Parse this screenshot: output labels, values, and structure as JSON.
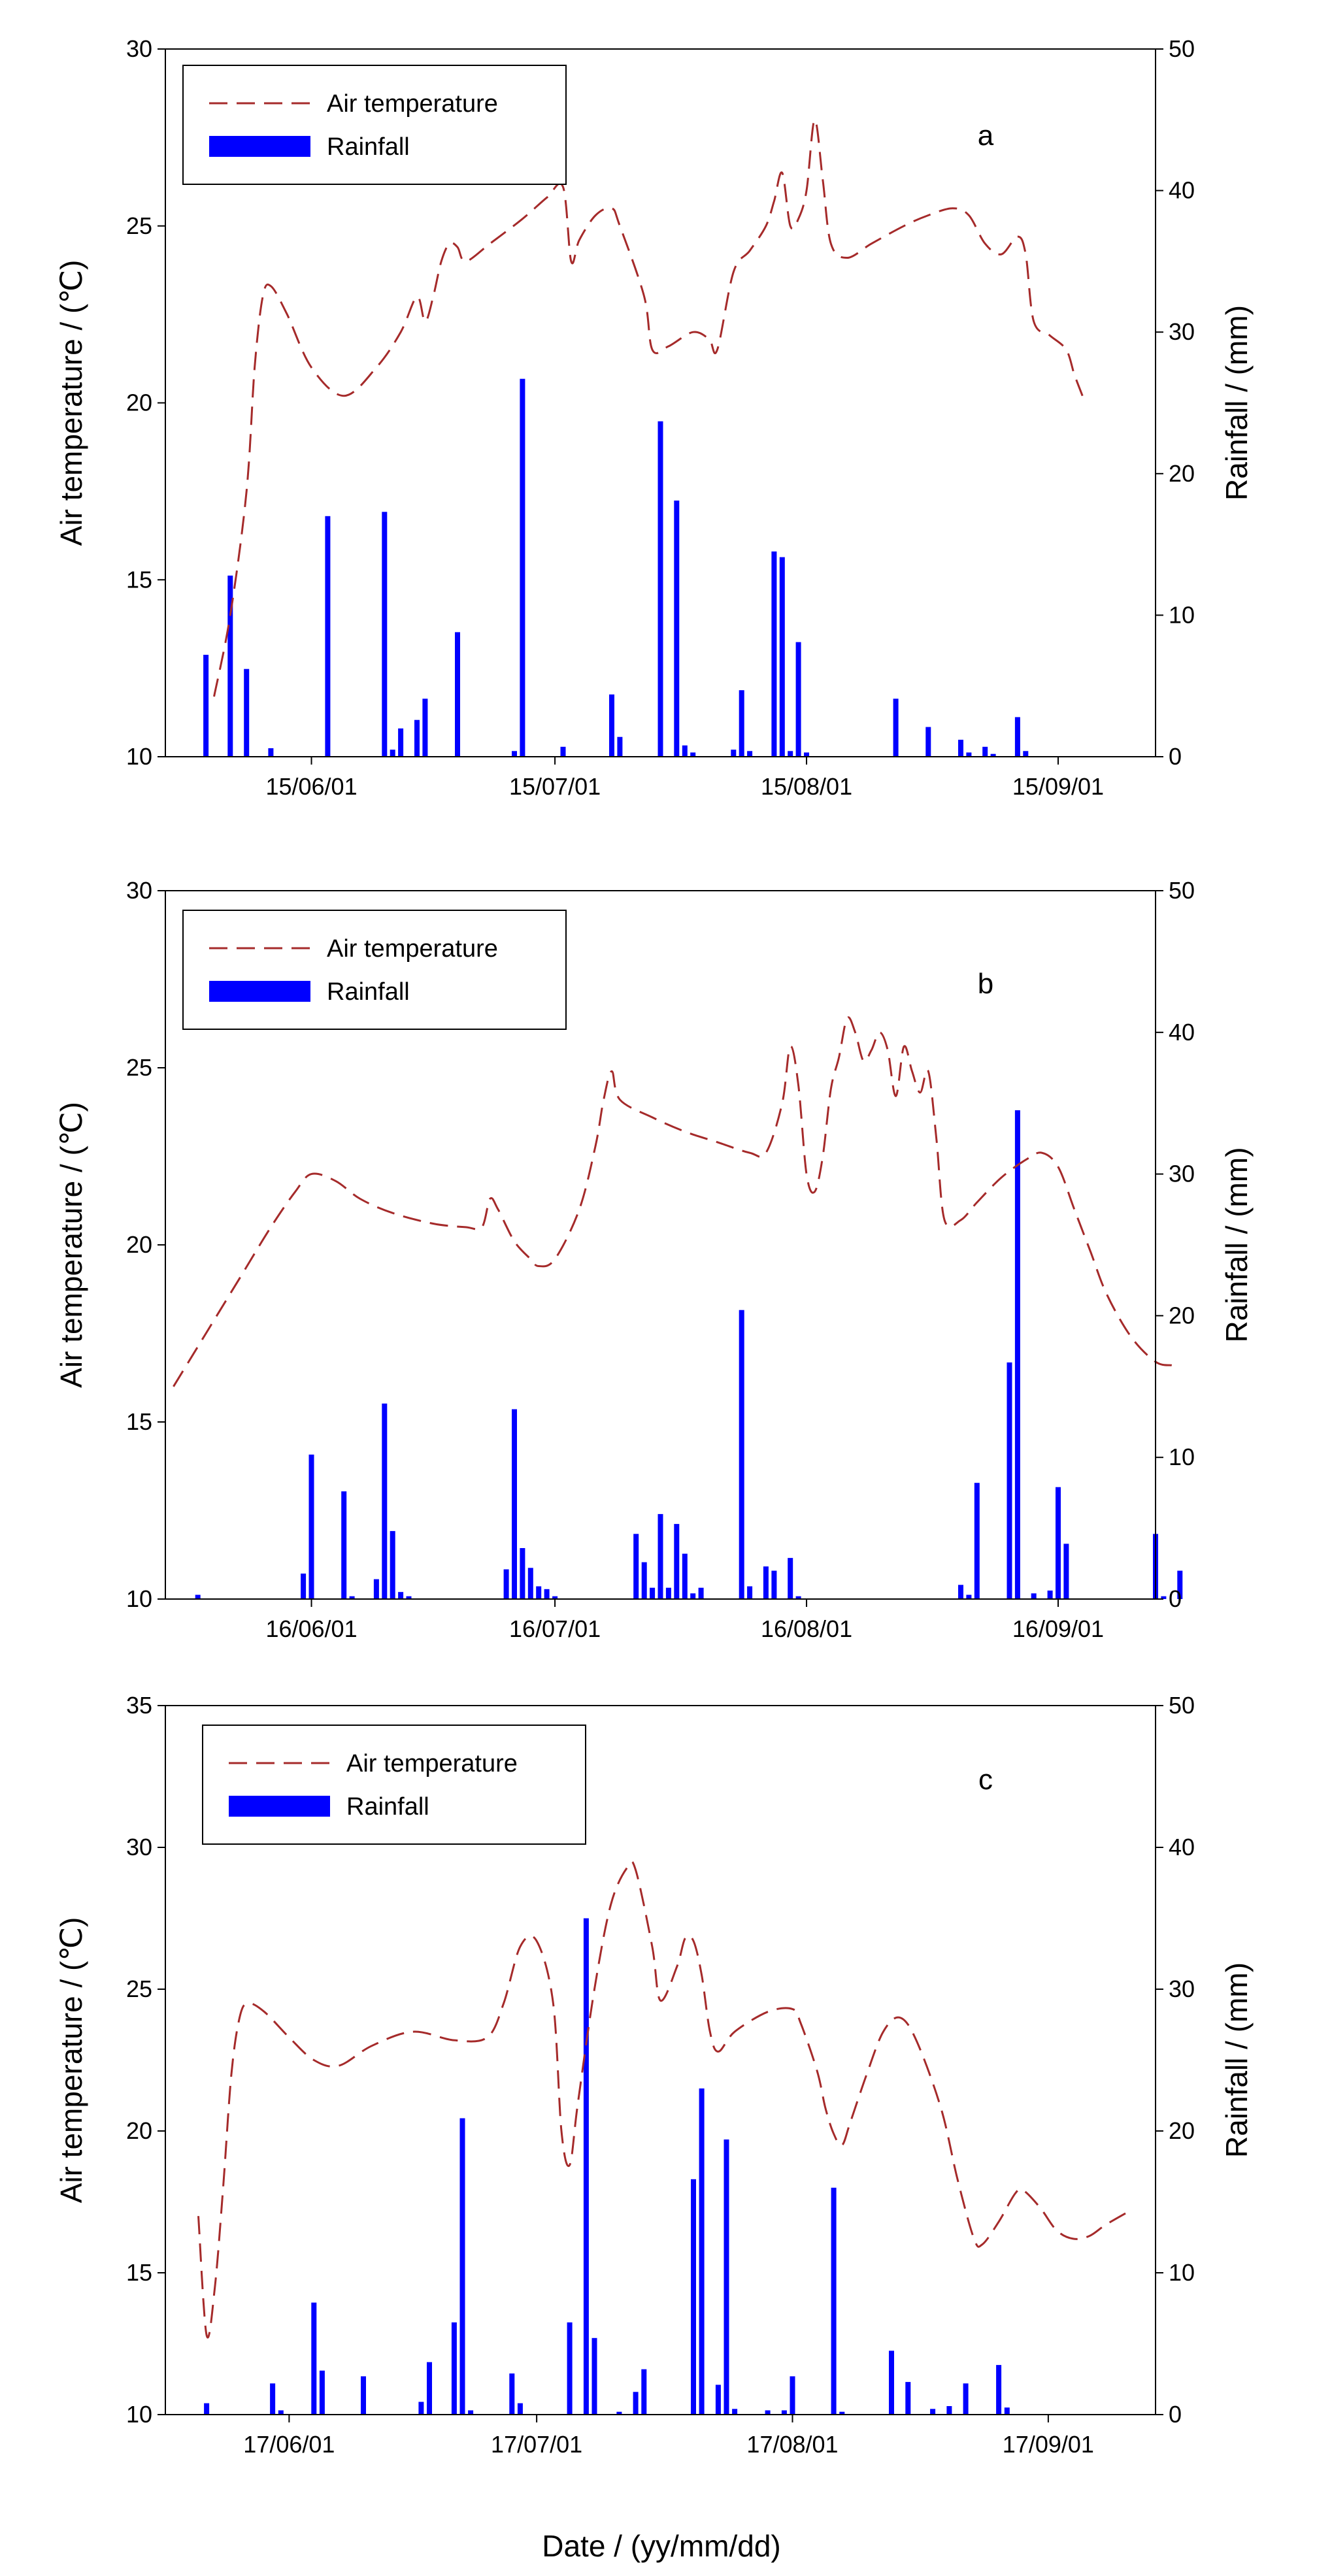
{
  "colors": {
    "temperature": "#a52a2a",
    "rainfall": "#0000ff",
    "axis": "#000000"
  },
  "xlabel": "Date / (yy/mm/dd)",
  "chart_data": [
    {
      "type": "bar",
      "panel": "a",
      "legend": {
        "temperature": "Air temperature",
        "rainfall": "Rainfall"
      },
      "ylabel_left": "Air temperature / (℃)",
      "ylabel_right": "Rainfall / (mm)",
      "ylim_left": [
        10,
        30
      ],
      "yticks_left": [
        10,
        15,
        20,
        25,
        30
      ],
      "ylim_right": [
        0,
        50
      ],
      "yticks_right": [
        0,
        10,
        20,
        30,
        40,
        50
      ],
      "xlim_days": [
        -18,
        104
      ],
      "xticks": [
        {
          "day": 0,
          "label": "15/06/01"
        },
        {
          "day": 30,
          "label": "15/07/01"
        },
        {
          "day": 61,
          "label": "15/08/01"
        },
        {
          "day": 92,
          "label": "15/09/01"
        }
      ],
      "temperature": [
        [
          -12,
          11.7
        ],
        [
          -10,
          14
        ],
        [
          -8,
          17.5
        ],
        [
          -7,
          21
        ],
        [
          -6,
          23
        ],
        [
          -5,
          23.3
        ],
        [
          -3,
          22.5
        ],
        [
          0,
          21
        ],
        [
          4,
          20.2
        ],
        [
          8,
          21
        ],
        [
          11,
          22
        ],
        [
          13,
          23
        ],
        [
          14,
          22.3
        ],
        [
          15,
          23
        ],
        [
          16,
          24
        ],
        [
          17,
          24.5
        ],
        [
          18,
          24.4
        ],
        [
          19,
          24
        ],
        [
          22,
          24.5
        ],
        [
          26,
          25.2
        ],
        [
          29,
          25.8
        ],
        [
          31,
          26.1
        ],
        [
          32,
          24
        ],
        [
          33,
          24.6
        ],
        [
          35,
          25.3
        ],
        [
          37,
          25.5
        ],
        [
          38,
          25
        ],
        [
          41,
          23
        ],
        [
          42,
          21.5
        ],
        [
          44,
          21.6
        ],
        [
          47,
          22
        ],
        [
          49,
          21.8
        ],
        [
          50,
          21.5
        ],
        [
          52,
          23.7
        ],
        [
          54,
          24.3
        ],
        [
          56,
          25
        ],
        [
          57,
          25.7
        ],
        [
          58,
          26.5
        ],
        [
          59,
          25
        ],
        [
          60,
          25.2
        ],
        [
          61,
          26
        ],
        [
          62,
          28
        ],
        [
          63,
          26.3
        ],
        [
          64,
          24.5
        ],
        [
          66,
          24.1
        ],
        [
          69,
          24.5
        ],
        [
          73,
          25
        ],
        [
          76,
          25.3
        ],
        [
          79,
          25.5
        ],
        [
          81,
          25.3
        ],
        [
          83,
          24.5
        ],
        [
          85,
          24.2
        ],
        [
          87,
          24.7
        ],
        [
          88,
          24.2
        ],
        [
          89,
          22.3
        ],
        [
          91,
          21.9
        ],
        [
          93,
          21.5
        ],
        [
          94,
          20.8
        ],
        [
          95,
          20.2
        ]
      ],
      "rainfall": [
        [
          -13,
          7.2
        ],
        [
          -10,
          12.8
        ],
        [
          -8,
          6.2
        ],
        [
          -5,
          0.6
        ],
        [
          2,
          17
        ],
        [
          9,
          17.3
        ],
        [
          10,
          0.5
        ],
        [
          11,
          2
        ],
        [
          13,
          2.6
        ],
        [
          14,
          4.1
        ],
        [
          18,
          8.8
        ],
        [
          25,
          0.4
        ],
        [
          26,
          26.7
        ],
        [
          31,
          0.7
        ],
        [
          37,
          4.4
        ],
        [
          38,
          1.4
        ],
        [
          43,
          23.7
        ],
        [
          45,
          18.1
        ],
        [
          46,
          0.8
        ],
        [
          47,
          0.3
        ],
        [
          52,
          0.5
        ],
        [
          53,
          4.7
        ],
        [
          54,
          0.4
        ],
        [
          57,
          14.5
        ],
        [
          58,
          14.1
        ],
        [
          59,
          0.4
        ],
        [
          60,
          8.1
        ],
        [
          61,
          0.3
        ],
        [
          72,
          4.1
        ],
        [
          76,
          2.1
        ],
        [
          80,
          1.2
        ],
        [
          81,
          0.3
        ],
        [
          83,
          0.7
        ],
        [
          84,
          0.2
        ],
        [
          87,
          2.8
        ],
        [
          88,
          0.4
        ]
      ]
    },
    {
      "type": "bar",
      "panel": "b",
      "legend": {
        "temperature": "Air temperature",
        "rainfall": "Rainfall"
      },
      "ylabel_left": "Air temperature / (℃)",
      "ylabel_right": "Rainfall / (mm)",
      "ylim_left": [
        10,
        30
      ],
      "yticks_left": [
        10,
        15,
        20,
        25,
        30
      ],
      "ylim_right": [
        0,
        50
      ],
      "yticks_right": [
        0,
        10,
        20,
        30,
        40,
        50
      ],
      "xlim_days": [
        -18,
        104
      ],
      "xticks": [
        {
          "day": 0,
          "label": "16/06/01"
        },
        {
          "day": 30,
          "label": "16/07/01"
        },
        {
          "day": 61,
          "label": "16/08/01"
        },
        {
          "day": 92,
          "label": "16/09/01"
        }
      ],
      "temperature": [
        [
          -17,
          16
        ],
        [
          -13,
          17.5
        ],
        [
          -9,
          19
        ],
        [
          -5,
          20.5
        ],
        [
          -2,
          21.5
        ],
        [
          0,
          22
        ],
        [
          3,
          21.8
        ],
        [
          6,
          21.3
        ],
        [
          10,
          20.9
        ],
        [
          15,
          20.6
        ],
        [
          19,
          20.5
        ],
        [
          21,
          20.5
        ],
        [
          22,
          21.3
        ],
        [
          23,
          21
        ],
        [
          25,
          20.1
        ],
        [
          27,
          19.6
        ],
        [
          28,
          19.4
        ],
        [
          30,
          19.6
        ],
        [
          33,
          21
        ],
        [
          35,
          22.8
        ],
        [
          36,
          24.1
        ],
        [
          37,
          24.9
        ],
        [
          38,
          24.1
        ],
        [
          42,
          23.6
        ],
        [
          46,
          23.2
        ],
        [
          50,
          22.9
        ],
        [
          54,
          22.6
        ],
        [
          56,
          22.6
        ],
        [
          58,
          24
        ],
        [
          59,
          25.6
        ],
        [
          60,
          24.5
        ],
        [
          61,
          22
        ],
        [
          62,
          21.5
        ],
        [
          63,
          22.5
        ],
        [
          64,
          24.4
        ],
        [
          65,
          25.3
        ],
        [
          66,
          26.4
        ],
        [
          67,
          26
        ],
        [
          68,
          25.2
        ],
        [
          69,
          25.5
        ],
        [
          70,
          26
        ],
        [
          71,
          25.5
        ],
        [
          72,
          24.2
        ],
        [
          73,
          25.6
        ],
        [
          74,
          24.9
        ],
        [
          75,
          24.3
        ],
        [
          76,
          24.9
        ],
        [
          77,
          23
        ],
        [
          78,
          20.7
        ],
        [
          80,
          20.7
        ],
        [
          82,
          21.2
        ],
        [
          85,
          21.9
        ],
        [
          88,
          22.4
        ],
        [
          90,
          22.6
        ],
        [
          92,
          22.2
        ],
        [
          94,
          21
        ],
        [
          96,
          19.8
        ],
        [
          98,
          18.6
        ],
        [
          101,
          17.4
        ],
        [
          104,
          16.7
        ],
        [
          106,
          16.6
        ]
      ],
      "rainfall": [
        [
          -14,
          0.3
        ],
        [
          -1,
          1.8
        ],
        [
          0,
          10.2
        ],
        [
          4,
          7.6
        ],
        [
          5,
          0.2
        ],
        [
          8,
          1.4
        ],
        [
          9,
          13.8
        ],
        [
          10,
          4.8
        ],
        [
          11,
          0.5
        ],
        [
          12,
          0.2
        ],
        [
          24,
          2.1
        ],
        [
          25,
          13.4
        ],
        [
          26,
          3.6
        ],
        [
          27,
          2.2
        ],
        [
          28,
          0.9
        ],
        [
          29,
          0.7
        ],
        [
          30,
          0.2
        ],
        [
          40,
          4.6
        ],
        [
          41,
          2.6
        ],
        [
          42,
          0.8
        ],
        [
          43,
          6
        ],
        [
          44,
          0.8
        ],
        [
          45,
          5.3
        ],
        [
          46,
          3.2
        ],
        [
          47,
          0.4
        ],
        [
          48,
          0.8
        ],
        [
          53,
          20.4
        ],
        [
          54,
          0.9
        ],
        [
          56,
          2.3
        ],
        [
          57,
          2
        ],
        [
          59,
          2.9
        ],
        [
          60,
          0.2
        ],
        [
          80,
          1
        ],
        [
          81,
          0.3
        ],
        [
          82,
          8.2
        ],
        [
          86,
          16.7
        ],
        [
          87,
          34.5
        ],
        [
          89,
          0.4
        ],
        [
          91,
          0.6
        ],
        [
          92,
          7.9
        ],
        [
          93,
          3.9
        ],
        [
          104,
          4.6
        ],
        [
          105,
          0.2
        ],
        [
          107,
          2
        ]
      ]
    },
    {
      "type": "bar",
      "panel": "c",
      "legend": {
        "temperature": "Air temperature",
        "rainfall": "Rainfall"
      },
      "ylabel_left": "Air temperature / (℃)",
      "ylabel_right": "Rainfall / (mm)",
      "ylim_left": [
        10,
        35
      ],
      "yticks_left": [
        10,
        15,
        20,
        25,
        30,
        35
      ],
      "ylim_right": [
        0,
        50
      ],
      "yticks_right": [
        0,
        10,
        20,
        30,
        40,
        50
      ],
      "xlim_days": [
        -15,
        105
      ],
      "xticks": [
        {
          "day": 0,
          "label": "17/06/01"
        },
        {
          "day": 30,
          "label": "17/07/01"
        },
        {
          "day": 61,
          "label": "17/08/01"
        },
        {
          "day": 92,
          "label": "17/09/01"
        }
      ],
      "temperature": [
        [
          -11,
          17
        ],
        [
          -10,
          12.8
        ],
        [
          -9,
          14.5
        ],
        [
          -8,
          18
        ],
        [
          -7,
          22
        ],
        [
          -6,
          24
        ],
        [
          -5,
          24.5
        ],
        [
          -3,
          24.2
        ],
        [
          0,
          23.3
        ],
        [
          3,
          22.5
        ],
        [
          6,
          22.3
        ],
        [
          10,
          23
        ],
        [
          15,
          23.5
        ],
        [
          20,
          23.2
        ],
        [
          24,
          23.3
        ],
        [
          26,
          24.5
        ],
        [
          28,
          26.5
        ],
        [
          30,
          26.7
        ],
        [
          32,
          24.5
        ],
        [
          33,
          20
        ],
        [
          34,
          18.8
        ],
        [
          35,
          21
        ],
        [
          37,
          25
        ],
        [
          39,
          28
        ],
        [
          41,
          29.3
        ],
        [
          42,
          29.2
        ],
        [
          44,
          26.5
        ],
        [
          45,
          24.6
        ],
        [
          47,
          25.8
        ],
        [
          48,
          26.8
        ],
        [
          49,
          26.7
        ],
        [
          50,
          25.5
        ],
        [
          51,
          23.5
        ],
        [
          52,
          22.8
        ],
        [
          54,
          23.5
        ],
        [
          58,
          24.2
        ],
        [
          61,
          24.3
        ],
        [
          62,
          23.8
        ],
        [
          64,
          22.1
        ],
        [
          65,
          20.8
        ],
        [
          66,
          19.9
        ],
        [
          67,
          19.5
        ],
        [
          68,
          20.3
        ],
        [
          70,
          22
        ],
        [
          72,
          23.5
        ],
        [
          74,
          24
        ],
        [
          76,
          23.2
        ],
        [
          79,
          20.8
        ],
        [
          81,
          18.3
        ],
        [
          83,
          16.2
        ],
        [
          84,
          16
        ],
        [
          86,
          16.8
        ],
        [
          88,
          17.8
        ],
        [
          89,
          17.9
        ],
        [
          91,
          17.3
        ],
        [
          93,
          16.5
        ],
        [
          95,
          16.2
        ],
        [
          97,
          16.3
        ],
        [
          99,
          16.7
        ],
        [
          102,
          17.2
        ]
      ],
      "rainfall": [
        [
          -10,
          0.8
        ],
        [
          -2,
          2.2
        ],
        [
          -1,
          0.3
        ],
        [
          3,
          7.9
        ],
        [
          4,
          3.1
        ],
        [
          9,
          2.7
        ],
        [
          16,
          0.9
        ],
        [
          17,
          3.7
        ],
        [
          20,
          6.5
        ],
        [
          21,
          20.9
        ],
        [
          22,
          0.3
        ],
        [
          27,
          2.9
        ],
        [
          28,
          0.8
        ],
        [
          34,
          6.5
        ],
        [
          36,
          35
        ],
        [
          37,
          5.4
        ],
        [
          40,
          0.2
        ],
        [
          42,
          1.6
        ],
        [
          43,
          3.2
        ],
        [
          49,
          16.6
        ],
        [
          50,
          23
        ],
        [
          52,
          2.1
        ],
        [
          53,
          19.4
        ],
        [
          54,
          0.4
        ],
        [
          58,
          0.3
        ],
        [
          60,
          0.3
        ],
        [
          61,
          2.7
        ],
        [
          66,
          16
        ],
        [
          67,
          0.2
        ],
        [
          73,
          4.5
        ],
        [
          75,
          2.3
        ],
        [
          78,
          0.4
        ],
        [
          80,
          0.6
        ],
        [
          82,
          2.2
        ],
        [
          86,
          3.5
        ],
        [
          87,
          0.5
        ]
      ]
    }
  ]
}
